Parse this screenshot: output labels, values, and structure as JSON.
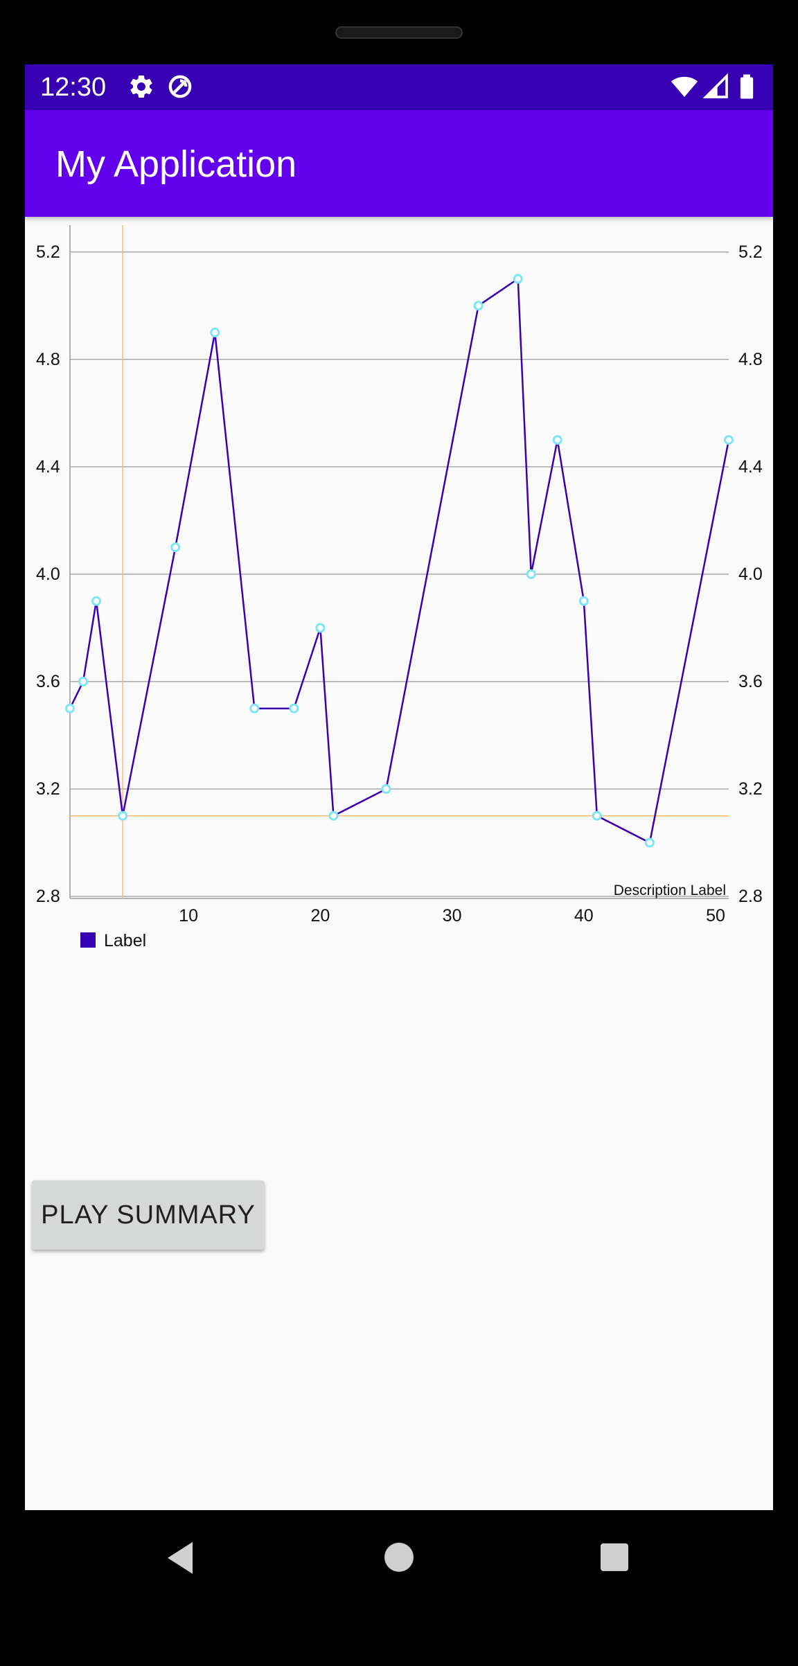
{
  "status_bar": {
    "time": "12:30",
    "icons": [
      "gear-icon",
      "vpn-icon",
      "wifi-icon",
      "signal-icon",
      "battery-icon"
    ]
  },
  "app_bar": {
    "title": "My Application"
  },
  "chart_data": {
    "type": "line",
    "x": [
      1,
      2,
      3,
      5,
      9,
      12,
      15,
      18,
      20,
      21,
      25,
      32,
      35,
      36,
      38,
      40,
      41,
      45,
      51
    ],
    "series": [
      {
        "name": "Label",
        "values": [
          3.5,
          3.6,
          3.9,
          3.1,
          4.1,
          4.9,
          3.5,
          3.5,
          3.8,
          3.1,
          3.2,
          5.0,
          5.1,
          4.0,
          4.5,
          3.9,
          3.1,
          3.0,
          4.5
        ],
        "line_color": "#3700b3",
        "point_color": "#7fe4f5"
      }
    ],
    "xlim": [
      1,
      51
    ],
    "ylim": [
      2.8,
      5.3
    ],
    "x_tick_labels": [
      "10",
      "20",
      "30",
      "40",
      "50"
    ],
    "x_ticks": [
      10,
      20,
      30,
      40,
      50
    ],
    "y_tick_labels": [
      "2.8",
      "3.2",
      "3.6",
      "4.0",
      "4.4",
      "4.8",
      "5.2"
    ],
    "y_ticks": [
      2.8,
      3.2,
      3.6,
      4.0,
      4.4,
      4.8,
      5.2
    ],
    "highlight": {
      "x": 5,
      "y": 3.1,
      "color": "#ffbb73"
    },
    "legend": {
      "label": "Label",
      "placement": "bottom-left"
    },
    "description": "Description Label",
    "grid": true
  },
  "buttons": {
    "play_summary": "PLAY SUMMARY"
  },
  "nav_bar": {
    "icons": [
      "back-icon",
      "home-icon",
      "recents-icon"
    ]
  }
}
